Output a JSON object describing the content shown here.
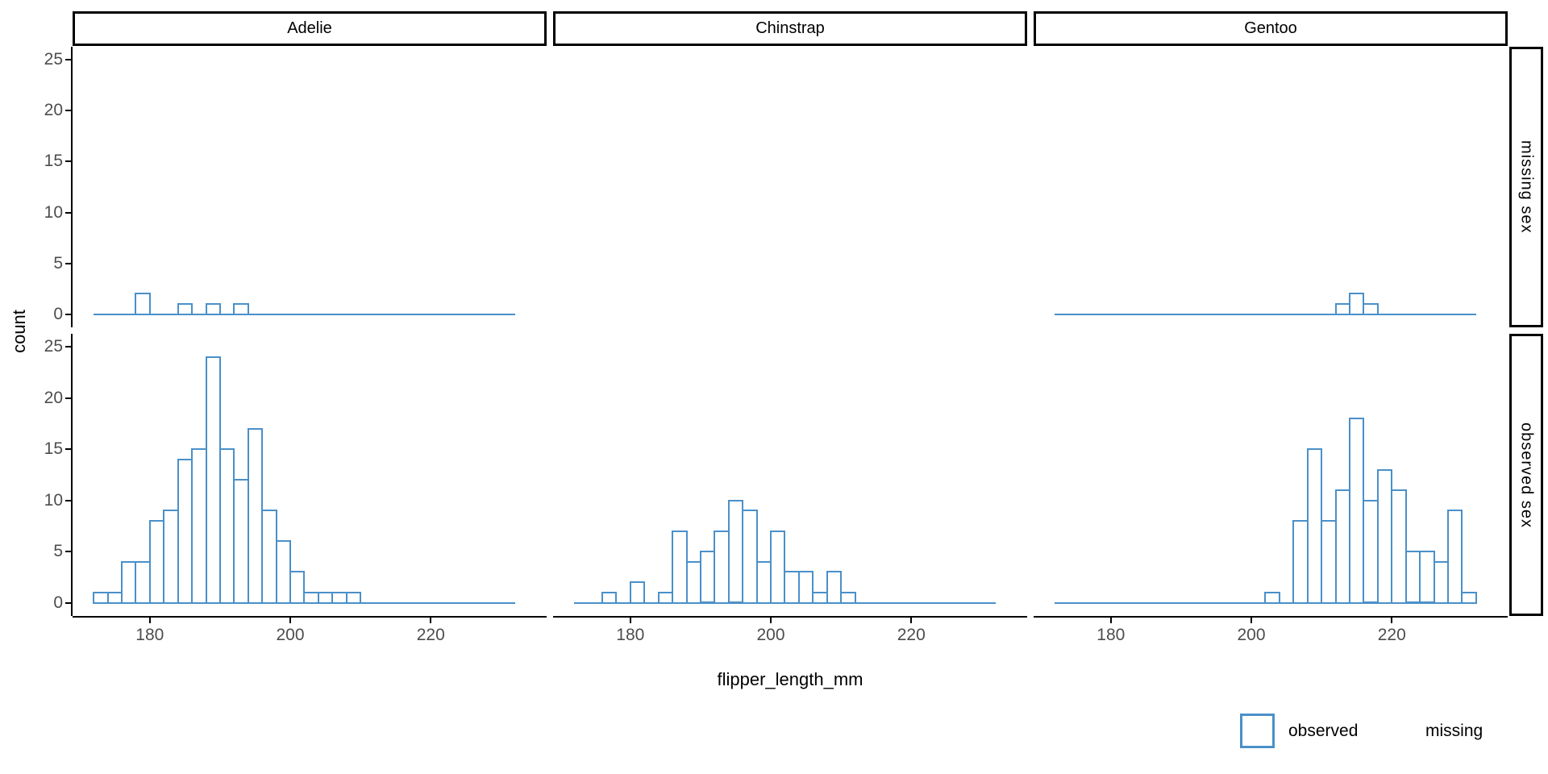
{
  "chart_data": {
    "type": "histogram",
    "title": "",
    "xlabel": "flipper_length_mm",
    "ylabel": "count",
    "col_facets": [
      "Adelie",
      "Chinstrap",
      "Gentoo"
    ],
    "row_facets": [
      "missing sex",
      "observed sex"
    ],
    "x_ticks": [
      180,
      200,
      220
    ],
    "y_ticks": [
      0,
      5,
      10,
      15,
      20,
      25
    ],
    "binwidth_mm": 2,
    "x_domain_mm": [
      169,
      236.5
    ],
    "y_domain_count": [
      -1.3,
      26.3
    ],
    "zero_line_span_mm": [
      172,
      232
    ],
    "grid": "off",
    "legend_position": "bottom-right",
    "panels": [
      {
        "row": "missing sex",
        "col": "Adelie",
        "has_data": true,
        "bins": [
          [
            178,
            2
          ],
          [
            184,
            1
          ],
          [
            188,
            1
          ],
          [
            192,
            1
          ]
        ]
      },
      {
        "row": "missing sex",
        "col": "Chinstrap",
        "has_data": false,
        "bins": []
      },
      {
        "row": "missing sex",
        "col": "Gentoo",
        "has_data": true,
        "bins": [
          [
            212,
            1
          ],
          [
            214,
            2
          ],
          [
            216,
            1
          ]
        ]
      },
      {
        "row": "observed sex",
        "col": "Adelie",
        "has_data": true,
        "bins": [
          [
            172,
            1
          ],
          [
            174,
            1
          ],
          [
            176,
            4
          ],
          [
            178,
            4
          ],
          [
            180,
            8
          ],
          [
            182,
            9
          ],
          [
            184,
            14
          ],
          [
            186,
            15
          ],
          [
            188,
            24
          ],
          [
            190,
            15
          ],
          [
            192,
            12
          ],
          [
            194,
            17
          ],
          [
            196,
            9
          ],
          [
            198,
            6
          ],
          [
            200,
            3
          ],
          [
            202,
            1
          ],
          [
            204,
            1
          ],
          [
            206,
            1
          ],
          [
            208,
            1
          ]
        ]
      },
      {
        "row": "observed sex",
        "col": "Chinstrap",
        "has_data": true,
        "bins": [
          [
            176,
            1
          ],
          [
            180,
            2
          ],
          [
            184,
            1
          ],
          [
            186,
            7
          ],
          [
            188,
            4
          ],
          [
            190,
            5
          ],
          [
            192,
            7
          ],
          [
            194,
            10
          ],
          [
            196,
            9
          ],
          [
            198,
            4
          ],
          [
            200,
            7
          ],
          [
            202,
            3
          ],
          [
            204,
            3
          ],
          [
            206,
            1
          ],
          [
            208,
            3
          ],
          [
            210,
            1
          ]
        ]
      },
      {
        "row": "observed sex",
        "col": "Gentoo",
        "has_data": true,
        "bins": [
          [
            202,
            1
          ],
          [
            206,
            8
          ],
          [
            208,
            15
          ],
          [
            210,
            8
          ],
          [
            212,
            11
          ],
          [
            214,
            18
          ],
          [
            216,
            10
          ],
          [
            218,
            13
          ],
          [
            220,
            11
          ],
          [
            222,
            5
          ],
          [
            224,
            5
          ],
          [
            226,
            4
          ],
          [
            228,
            9
          ],
          [
            230,
            1
          ]
        ]
      }
    ]
  },
  "legend": {
    "items": [
      {
        "label": "observed",
        "key": "outlined-box"
      },
      {
        "label": "missing",
        "key": "blank"
      }
    ]
  },
  "colors": {
    "histogram_stroke": "#4a90c9",
    "axis_text": "#4d4d4d",
    "axis_line": "#000000",
    "strip_border": "#000000",
    "text": "#000000",
    "panel_background": "#ffffff"
  }
}
